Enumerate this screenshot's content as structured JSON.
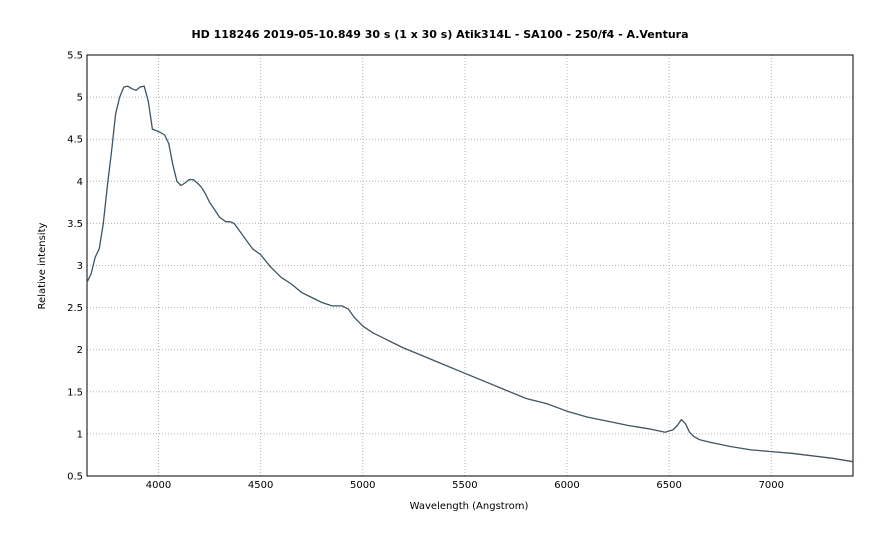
{
  "chart_data": {
    "type": "line",
    "title": "HD 118246  2019-05-10.849  30 s (1 x 30 s)  Atik314L - SA100 - 250/f4 - A.Ventura",
    "xlabel": "Wavelength (Angstrom)",
    "ylabel": "Relative intensity",
    "xlim": [
      3650,
      7400
    ],
    "ylim": [
      0.5,
      5.5
    ],
    "grid": true,
    "x_ticks": [
      4000,
      4500,
      5000,
      5500,
      6000,
      6500,
      7000
    ],
    "y_ticks": [
      0.5,
      1,
      1.5,
      2,
      2.5,
      3,
      3.5,
      4,
      4.5,
      5,
      5.5
    ],
    "x_tick_labels": [
      "4000",
      "4500",
      "5000",
      "5500",
      "6000",
      "6500",
      "7000"
    ],
    "y_tick_labels": [
      "0.5",
      "1",
      "1.5",
      "2",
      "2.5",
      "3",
      "3.5",
      "4",
      "4.5",
      "5",
      "5.5"
    ],
    "series": [
      {
        "color": "#3e5563",
        "x": [
          3650,
          3670,
          3690,
          3710,
          3730,
          3750,
          3770,
          3790,
          3810,
          3830,
          3850,
          3870,
          3890,
          3910,
          3930,
          3950,
          3970,
          3990,
          4010,
          4030,
          4050,
          4070,
          4090,
          4110,
          4130,
          4150,
          4170,
          4190,
          4210,
          4230,
          4250,
          4270,
          4300,
          4330,
          4350,
          4370,
          4400,
          4430,
          4460,
          4500,
          4550,
          4600,
          4650,
          4700,
          4750,
          4800,
          4850,
          4900,
          4930,
          4960,
          5000,
          5050,
          5100,
          5150,
          5200,
          5300,
          5400,
          5500,
          5600,
          5700,
          5800,
          5900,
          6000,
          6100,
          6200,
          6300,
          6400,
          6480,
          6520,
          6540,
          6560,
          6580,
          6600,
          6620,
          6650,
          6700,
          6800,
          6900,
          7000,
          7100,
          7200,
          7300,
          7400
        ],
        "y": [
          2.8,
          2.9,
          3.1,
          3.2,
          3.5,
          3.95,
          4.35,
          4.8,
          5.0,
          5.12,
          5.13,
          5.1,
          5.08,
          5.12,
          5.13,
          4.95,
          4.62,
          4.6,
          4.58,
          4.55,
          4.45,
          4.2,
          4.0,
          3.95,
          3.98,
          4.02,
          4.02,
          3.98,
          3.93,
          3.85,
          3.75,
          3.68,
          3.57,
          3.52,
          3.52,
          3.5,
          3.4,
          3.3,
          3.2,
          3.13,
          2.98,
          2.86,
          2.78,
          2.68,
          2.62,
          2.56,
          2.52,
          2.52,
          2.48,
          2.38,
          2.28,
          2.2,
          2.14,
          2.08,
          2.02,
          1.92,
          1.82,
          1.72,
          1.62,
          1.52,
          1.42,
          1.36,
          1.27,
          1.2,
          1.15,
          1.1,
          1.06,
          1.02,
          1.05,
          1.1,
          1.17,
          1.12,
          1.02,
          0.97,
          0.93,
          0.9,
          0.85,
          0.81,
          0.79,
          0.77,
          0.74,
          0.71,
          0.67
        ]
      }
    ]
  }
}
